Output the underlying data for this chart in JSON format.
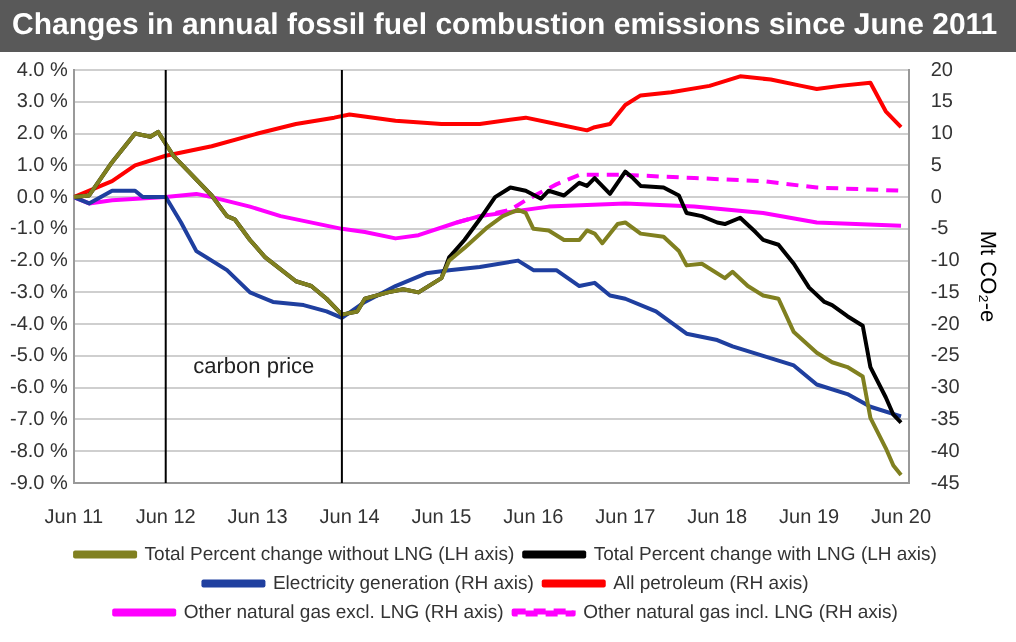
{
  "chart_data": {
    "type": "line",
    "title": "Changes in annual fossil fuel combustion emissions since June 2011",
    "y2label": "Mt CO₂-e",
    "xlim": [
      "2011-06",
      "2020-07"
    ],
    "xticks": [
      {
        "value": "2011-06",
        "label": "Jun 11"
      },
      {
        "value": "2012-06",
        "label": "Jun 12"
      },
      {
        "value": "2013-06",
        "label": "Jun 13"
      },
      {
        "value": "2014-06",
        "label": "Jun 14"
      },
      {
        "value": "2015-06",
        "label": "Jun 15"
      },
      {
        "value": "2016-06",
        "label": "Jun 16"
      },
      {
        "value": "2017-06",
        "label": "Jun 17"
      },
      {
        "value": "2018-06",
        "label": "Jun 18"
      },
      {
        "value": "2019-06",
        "label": "Jun 19"
      },
      {
        "value": "2020-06",
        "label": "Jun 20"
      }
    ],
    "ylim": [
      -9,
      4
    ],
    "yticks": [
      {
        "value": -9,
        "label": "-9.0 %"
      },
      {
        "value": -8,
        "label": "-8.0 %"
      },
      {
        "value": -7,
        "label": "-7.0 %"
      },
      {
        "value": -6,
        "label": "-6.0 %"
      },
      {
        "value": -5,
        "label": "-5.0 %"
      },
      {
        "value": -4,
        "label": "-4.0 %"
      },
      {
        "value": -3,
        "label": "-3.0 %"
      },
      {
        "value": -2,
        "label": "-2.0 %"
      },
      {
        "value": -1,
        "label": "-1.0 %"
      },
      {
        "value": 0,
        "label": "0.0 %"
      },
      {
        "value": 1,
        "label": "1.0 %"
      },
      {
        "value": 2,
        "label": "2.0 %"
      },
      {
        "value": 3,
        "label": "3.0 %"
      },
      {
        "value": 4,
        "label": "4.0 %"
      }
    ],
    "y2lim": [
      -45,
      20
    ],
    "y2ticks": [
      -45,
      -40,
      -35,
      -30,
      -25,
      -20,
      -15,
      -10,
      -5,
      0,
      5,
      10,
      15,
      20
    ],
    "grid": "y",
    "legend": "bottom",
    "marker": "none",
    "ref_lines": [
      {
        "axis": "x",
        "value": "2012-06",
        "color": "#000000"
      },
      {
        "axis": "x",
        "value": "2014-05",
        "color": "#000000"
      }
    ],
    "annotations": [
      "carbon price"
    ],
    "series": [
      {
        "name": "Total Percent change without LNG (LH axis)",
        "color": "#808020",
        "axis": "y",
        "x": [
          "2011-06",
          "2011-08",
          "2011-11",
          "2012-02",
          "2012-04",
          "2012-05",
          "2012-07",
          "2012-09",
          "2012-12",
          "2013-02",
          "2013-03",
          "2013-05",
          "2013-07",
          "2013-11",
          "2014-01",
          "2014-03",
          "2014-05",
          "2014-07",
          "2014-08",
          "2014-11",
          "2015-01",
          "2015-03",
          "2015-06",
          "2015-07",
          "2015-09",
          "2015-12",
          "2016-02",
          "2016-04",
          "2016-05",
          "2016-06",
          "2016-08",
          "2016-10",
          "2016-12",
          "2017-01",
          "2017-02",
          "2017-03",
          "2017-05",
          "2017-06",
          "2017-08",
          "2017-11",
          "2018-01",
          "2018-02",
          "2018-04",
          "2018-07",
          "2018-08",
          "2018-10",
          "2018-12",
          "2019-02",
          "2019-04",
          "2019-07",
          "2019-09",
          "2019-11",
          "2020-01",
          "2020-02",
          "2020-04",
          "2020-05",
          "2020-06"
        ],
        "values": [
          0,
          0.05,
          1.1,
          2.0,
          1.9,
          2.05,
          1.3,
          0.8,
          0.05,
          -0.6,
          -0.7,
          -1.35,
          -1.9,
          -2.65,
          -2.8,
          -3.2,
          -3.7,
          -3.6,
          -3.2,
          -3.0,
          -2.9,
          -3.0,
          -2.55,
          -2.0,
          -1.6,
          -0.95,
          -0.6,
          -0.4,
          -0.5,
          -1.0,
          -1.05,
          -1.35,
          -1.35,
          -1.05,
          -1.15,
          -1.45,
          -0.85,
          -0.8,
          -1.15,
          -1.25,
          -1.7,
          -2.15,
          -2.1,
          -2.55,
          -2.35,
          -2.8,
          -3.1,
          -3.2,
          -4.25,
          -4.9,
          -5.2,
          -5.35,
          -5.65,
          -6.95,
          -7.9,
          -8.45,
          -8.75
        ]
      },
      {
        "name": "Total Percent change with LNG (LH axis)",
        "color": "#000000",
        "axis": "y",
        "x": [
          "2011-06",
          "2011-08",
          "2011-11",
          "2012-02",
          "2012-04",
          "2012-05",
          "2012-07",
          "2012-09",
          "2012-12",
          "2013-02",
          "2013-03",
          "2013-05",
          "2013-07",
          "2013-11",
          "2014-01",
          "2014-03",
          "2014-05",
          "2014-07",
          "2014-08",
          "2014-11",
          "2015-01",
          "2015-03",
          "2015-06",
          "2015-07",
          "2015-09",
          "2015-11",
          "2016-01",
          "2016-03",
          "2016-05",
          "2016-07",
          "2016-08",
          "2016-10",
          "2016-12",
          "2017-01",
          "2017-02",
          "2017-04",
          "2017-06",
          "2017-07",
          "2017-08",
          "2017-11",
          "2018-01",
          "2018-02",
          "2018-04",
          "2018-06",
          "2018-07",
          "2018-09",
          "2018-11",
          "2018-12",
          "2019-02",
          "2019-04",
          "2019-06",
          "2019-08",
          "2019-09",
          "2019-11",
          "2020-01",
          "2020-02",
          "2020-04",
          "2020-05",
          "2020-06"
        ],
        "values": [
          0,
          0.05,
          1.1,
          2.0,
          1.9,
          2.05,
          1.3,
          0.8,
          0.05,
          -0.6,
          -0.7,
          -1.35,
          -1.9,
          -2.65,
          -2.8,
          -3.2,
          -3.7,
          -3.6,
          -3.2,
          -3.0,
          -2.9,
          -3.0,
          -2.55,
          -1.9,
          -1.35,
          -0.7,
          0.0,
          0.3,
          0.2,
          -0.05,
          0.2,
          0.05,
          0.45,
          0.35,
          0.6,
          0.1,
          0.8,
          0.6,
          0.35,
          0.3,
          0.05,
          -0.5,
          -0.6,
          -0.8,
          -0.85,
          -0.65,
          -1.1,
          -1.35,
          -1.5,
          -2.1,
          -2.85,
          -3.3,
          -3.4,
          -3.75,
          -4.05,
          -5.35,
          -6.3,
          -6.85,
          -7.1
        ]
      },
      {
        "name": "Electricity generation (RH axis)",
        "color": "#1f3f9f",
        "axis": "y2",
        "x": [
          "2011-06",
          "2011-08",
          "2011-11",
          "2012-02",
          "2012-03",
          "2012-06",
          "2012-08",
          "2012-10",
          "2013-02",
          "2013-05",
          "2013-08",
          "2013-12",
          "2014-03",
          "2014-05",
          "2014-08",
          "2014-12",
          "2015-04",
          "2015-07",
          "2015-11",
          "2016-04",
          "2016-06",
          "2016-09",
          "2016-12",
          "2017-02",
          "2017-04",
          "2017-06",
          "2017-10",
          "2018-02",
          "2018-06",
          "2018-08",
          "2018-12",
          "2019-04",
          "2019-07",
          "2019-11",
          "2020-02",
          "2020-06"
        ],
        "values": [
          0,
          -1,
          1,
          1,
          0,
          0,
          -4,
          -8.5,
          -11.5,
          -15,
          -16.5,
          -17,
          -18,
          -19,
          -16.5,
          -14,
          -12,
          -11.5,
          -11,
          -10,
          -11.5,
          -11.5,
          -14,
          -13.5,
          -15.5,
          -16,
          -18,
          -21.5,
          -22.5,
          -23.5,
          -25,
          -26.5,
          -29.5,
          -31,
          -33,
          -34.5
        ]
      },
      {
        "name": "All petroleum (RH axis)",
        "color": "#ff0000",
        "axis": "y2",
        "x": [
          "2011-06",
          "2011-11",
          "2012-02",
          "2012-06",
          "2012-12",
          "2013-06",
          "2013-11",
          "2014-04",
          "2014-06",
          "2014-12",
          "2015-06",
          "2015-11",
          "2016-05",
          "2016-09",
          "2017-01",
          "2017-02",
          "2017-04",
          "2017-06",
          "2017-08",
          "2017-12",
          "2018-05",
          "2018-09",
          "2019-01",
          "2019-05",
          "2019-07",
          "2019-10",
          "2020-02",
          "2020-04",
          "2020-06"
        ],
        "values": [
          0,
          2.5,
          5,
          6.5,
          8,
          10,
          11.5,
          12.5,
          13,
          12,
          11.5,
          11.5,
          12.5,
          11.5,
          10.5,
          11,
          11.5,
          14.5,
          16,
          16.5,
          17.5,
          19,
          18.5,
          17.5,
          17,
          17.5,
          18,
          13.5,
          11
        ]
      },
      {
        "name": "Other natural gas excl. LNG (RH axis)",
        "color": "#ff00ff",
        "axis": "y2",
        "x": [
          "2011-06",
          "2011-08",
          "2011-11",
          "2012-06",
          "2012-10",
          "2012-12",
          "2013-05",
          "2013-09",
          "2014-05",
          "2014-08",
          "2014-12",
          "2015-03",
          "2015-08",
          "2015-11",
          "2016-02",
          "2016-08",
          "2017-06",
          "2018-03",
          "2018-12",
          "2019-07",
          "2020-06"
        ],
        "values": [
          0,
          -1,
          -0.5,
          0,
          0.5,
          0,
          -1.5,
          -3,
          -5,
          -5.5,
          -6.5,
          -6,
          -4,
          -3,
          -2.5,
          -1.5,
          -1,
          -1.5,
          -2.5,
          -4,
          -4.5
        ]
      },
      {
        "name": "Other natural gas incl. LNG (RH axis)",
        "color": "#ff00ff",
        "axis": "y2",
        "line_style": "dashed",
        "x": [
          "2015-08",
          "2015-11",
          "2016-03",
          "2016-05",
          "2016-09",
          "2016-12",
          "2017-06",
          "2018-03",
          "2018-12",
          "2019-07",
          "2020-06"
        ],
        "values": [
          -4,
          -3,
          -2,
          -0.5,
          2,
          3.5,
          3.5,
          3,
          2.5,
          1.5,
          1
        ]
      }
    ]
  }
}
